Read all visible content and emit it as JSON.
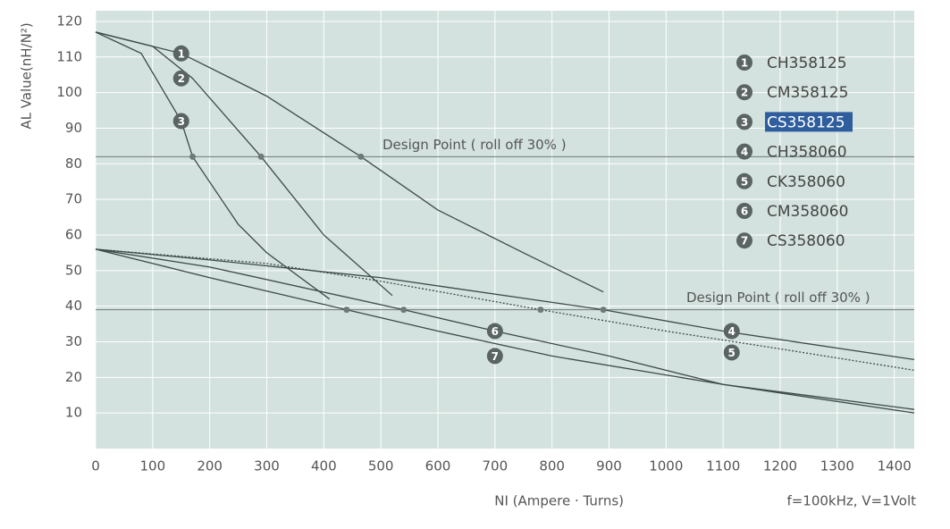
{
  "chart_data": {
    "type": "line",
    "y_label": "AL Value(nH/N²)",
    "x_label": "NI (Ampere · Turns)",
    "note": "f=100kHz, V=1Volt",
    "xlim": [
      0,
      1435
    ],
    "ylim": [
      0,
      123
    ],
    "xticks": [
      0,
      100,
      200,
      300,
      400,
      500,
      600,
      700,
      800,
      900,
      1000,
      1100,
      1200,
      1300,
      1400
    ],
    "yticks": [
      10,
      20,
      30,
      40,
      50,
      60,
      70,
      80,
      90,
      100,
      110,
      120
    ],
    "grid": true,
    "reference_lines": [
      {
        "value": 82,
        "label": "Design Point ( roll off 30% )"
      },
      {
        "value": 39,
        "label": "Design Point ( roll off 30% )"
      }
    ],
    "series": [
      {
        "name": "CH358125",
        "number": "1",
        "color": "#3d4a48",
        "x": [
          0,
          150,
          300,
          465,
          600,
          750,
          890
        ],
        "values": [
          117,
          111,
          99,
          82,
          67,
          55,
          44
        ]
      },
      {
        "name": "CM358125",
        "number": "2",
        "color": "#3d4a48",
        "x": [
          0,
          100,
          170,
          290,
          400,
          520
        ],
        "values": [
          117,
          113,
          104,
          82,
          60,
          43
        ]
      },
      {
        "name": "CS358125",
        "number": "3",
        "color": "#3d4a48",
        "x": [
          0,
          80,
          150,
          170,
          250,
          300,
          410
        ],
        "values": [
          117,
          111,
          92,
          82,
          63,
          55,
          42
        ]
      },
      {
        "name": "CH358060",
        "number": "4",
        "color": "#3d4a48",
        "x": [
          0,
          200,
          500,
          890,
          1100,
          1435
        ],
        "values": [
          56,
          53,
          48,
          39,
          33,
          25
        ]
      },
      {
        "name": "CK358060",
        "number": "5",
        "color": "#3d4a48",
        "dotted": true,
        "x": [
          0,
          300,
          500,
          780,
          1000,
          1200,
          1435
        ],
        "values": [
          56,
          52,
          47,
          39,
          33,
          28,
          22
        ]
      },
      {
        "name": "CM358060",
        "number": "6",
        "color": "#3d4a48",
        "x": [
          0,
          200,
          540,
          700,
          900,
          1100,
          1435
        ],
        "values": [
          56,
          51,
          39,
          33,
          26,
          18,
          11
        ]
      },
      {
        "name": "CS358060",
        "number": "7",
        "color": "#3d4a48",
        "x": [
          0,
          200,
          440,
          600,
          800,
          1100,
          1435
        ],
        "values": [
          56,
          48,
          39,
          33,
          26,
          18,
          10
        ]
      }
    ]
  }
}
